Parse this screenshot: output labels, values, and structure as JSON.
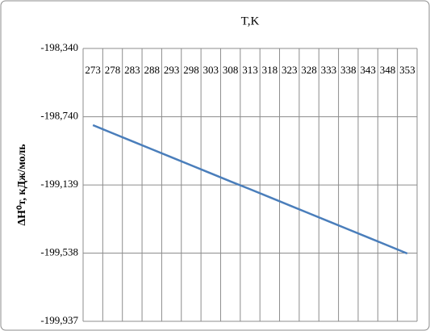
{
  "chart_data": {
    "type": "line",
    "title": "T,K",
    "y_label": "ΔH⁰т, кДж/моль",
    "categories": [
      273,
      278,
      283,
      288,
      293,
      298,
      303,
      308,
      313,
      318,
      323,
      328,
      333,
      338,
      343,
      348,
      353
    ],
    "values": [
      -198.789,
      -198.836,
      -198.883,
      -198.93,
      -198.977,
      -199.024,
      -199.071,
      -199.118,
      -199.164,
      -199.211,
      -199.258,
      -199.305,
      -199.352,
      -199.399,
      -199.446,
      -199.493,
      -199.54
    ],
    "color": "#4a7ebb",
    "ylim": [
      -199.937,
      -198.34
    ],
    "yticks": [
      {
        "value": -198.34,
        "label": "-198,340"
      },
      {
        "value": -198.74,
        "label": "-198,740"
      },
      {
        "value": -199.139,
        "label": "-199,139"
      },
      {
        "value": -199.538,
        "label": "-199,538"
      },
      {
        "value": -199.937,
        "label": "-199,937"
      }
    ],
    "grid": true
  }
}
